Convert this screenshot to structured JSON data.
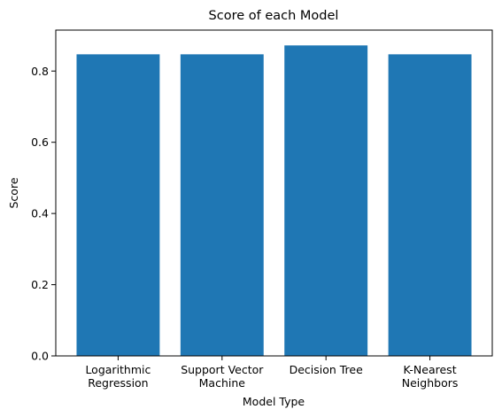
{
  "chart_data": {
    "type": "bar",
    "title": "Score of each Model",
    "xlabel": "Model Type",
    "ylabel": "Score",
    "categories": [
      "Logarithmic\nRegression",
      "Support Vector\nMachine",
      "Decision Tree",
      "K-Nearest\nNeighbors"
    ],
    "values": [
      0.847,
      0.847,
      0.872,
      0.847
    ],
    "ylim": [
      0,
      0.915
    ],
    "yticks": [
      0.0,
      0.2,
      0.4,
      0.6,
      0.8
    ],
    "ytick_labels": [
      "0.0",
      "0.2",
      "0.4",
      "0.6",
      "0.8"
    ],
    "bar_color": "#1f77b4",
    "grid": false,
    "legend": "none"
  }
}
